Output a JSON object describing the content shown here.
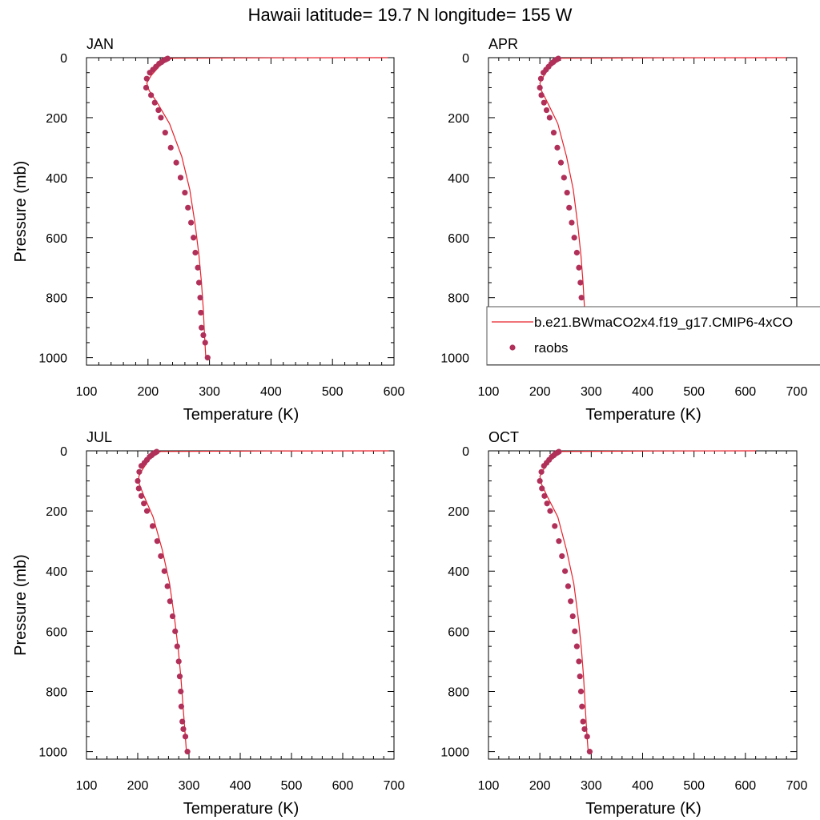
{
  "title": "Hawaii  latitude= 19.7 N longitude= 155 W",
  "legend": {
    "model_label": "b.e21.BWmaCO2x4.f19_g17.CMIP6-4xCO",
    "obs_label": "raobs"
  },
  "colors": {
    "model_line": "#e8202a",
    "obs_marker": "#b0305a",
    "axis": "#000000"
  },
  "chart_data": [
    {
      "type": "line",
      "panel_title": "JAN",
      "xlabel": "Temperature (K)",
      "ylabel": "Pressure (mb)",
      "xlim": [
        100,
        600
      ],
      "ylim": [
        0,
        1025
      ],
      "y_inverted": true,
      "xticks": [
        100,
        200,
        300,
        400,
        500,
        600
      ],
      "yticks": [
        0,
        200,
        400,
        600,
        800,
        1000
      ],
      "series": [
        {
          "name": "b.e21.BWmaCO2x4.f19_g17.CMIP6-4xCO",
          "kind": "line",
          "x": [
            590,
            400,
            240,
            230,
            218,
            205,
            198,
            202,
            215,
            235,
            255,
            268,
            277,
            283,
            287,
            290,
            292,
            294
          ],
          "y": [
            0,
            0.5,
            2,
            8,
            30,
            60,
            85,
            110,
            150,
            220,
            330,
            440,
            560,
            660,
            750,
            840,
            930,
            1000
          ]
        },
        {
          "name": "raobs",
          "kind": "scatter",
          "x": [
            232,
            230,
            228,
            225,
            222,
            218,
            213,
            208,
            203,
            198,
            197,
            205,
            211,
            217,
            221,
            228,
            237,
            246,
            253,
            260,
            265,
            270,
            274,
            277,
            281,
            283,
            285,
            286,
            287,
            290,
            293,
            297
          ],
          "y": [
            3,
            5,
            7,
            10,
            15,
            20,
            30,
            40,
            50,
            70,
            100,
            125,
            150,
            175,
            200,
            250,
            300,
            350,
            400,
            450,
            500,
            550,
            600,
            650,
            700,
            750,
            800,
            850,
            900,
            925,
            950,
            1000
          ]
        }
      ]
    },
    {
      "type": "line",
      "panel_title": "APR",
      "xlabel": "Temperature (K)",
      "ylabel": "",
      "xlim": [
        100,
        700
      ],
      "ylim": [
        0,
        1025
      ],
      "y_inverted": true,
      "xticks": [
        100,
        200,
        300,
        400,
        500,
        600,
        700
      ],
      "yticks": [
        0,
        200,
        400,
        600,
        800,
        1000
      ],
      "series": [
        {
          "name": "b.e21.BWmaCO2x4.f19_g17.CMIP6-4xCO",
          "kind": "line",
          "x": [
            680,
            450,
            240,
            232,
            220,
            208,
            200,
            203,
            215,
            235,
            252,
            265,
            274,
            280,
            284,
            287,
            290,
            292
          ],
          "y": [
            0,
            0.5,
            2,
            8,
            30,
            60,
            85,
            110,
            150,
            220,
            330,
            440,
            560,
            660,
            750,
            840,
            930,
            1000
          ]
        },
        {
          "name": "raobs",
          "kind": "scatter",
          "x": [
            236,
            234,
            232,
            229,
            226,
            222,
            217,
            212,
            207,
            202,
            200,
            203,
            208,
            213,
            219,
            227,
            234,
            241,
            247,
            253,
            257,
            262,
            267,
            272,
            276,
            279,
            281,
            283,
            285,
            287,
            291,
            295
          ],
          "y": [
            3,
            5,
            7,
            10,
            15,
            20,
            30,
            40,
            50,
            70,
            100,
            125,
            150,
            175,
            200,
            250,
            300,
            350,
            400,
            450,
            500,
            550,
            600,
            650,
            700,
            750,
            800,
            850,
            900,
            925,
            950,
            1000
          ]
        }
      ]
    },
    {
      "type": "line",
      "panel_title": "JUL",
      "xlabel": "Temperature (K)",
      "ylabel": "Pressure (mb)",
      "xlim": [
        100,
        700
      ],
      "ylim": [
        0,
        1025
      ],
      "y_inverted": true,
      "xticks": [
        100,
        200,
        300,
        400,
        500,
        600,
        700
      ],
      "yticks": [
        0,
        200,
        400,
        600,
        800,
        1000
      ],
      "series": [
        {
          "name": "b.e21.BWmaCO2x4.f19_g17.CMIP6-4xCO",
          "kind": "line",
          "x": [
            690,
            450,
            245,
            235,
            222,
            210,
            202,
            203,
            212,
            230,
            248,
            262,
            272,
            279,
            284,
            288,
            292,
            295
          ],
          "y": [
            0,
            0.5,
            2,
            8,
            30,
            60,
            85,
            110,
            150,
            220,
            330,
            440,
            560,
            660,
            750,
            840,
            930,
            1000
          ]
        },
        {
          "name": "raobs",
          "kind": "scatter",
          "x": [
            237,
            235,
            233,
            230,
            227,
            223,
            218,
            213,
            207,
            203,
            200,
            202,
            207,
            212,
            218,
            229,
            238,
            245,
            252,
            258,
            263,
            268,
            273,
            277,
            280,
            282,
            284,
            285,
            287,
            289,
            293,
            297
          ],
          "y": [
            3,
            5,
            7,
            10,
            15,
            20,
            30,
            40,
            50,
            70,
            100,
            125,
            150,
            175,
            200,
            250,
            300,
            350,
            400,
            450,
            500,
            550,
            600,
            650,
            700,
            750,
            800,
            850,
            900,
            925,
            950,
            1000
          ]
        }
      ]
    },
    {
      "type": "line",
      "panel_title": "OCT",
      "xlabel": "Temperature (K)",
      "ylabel": "",
      "xlim": [
        100,
        700
      ],
      "ylim": [
        0,
        1025
      ],
      "y_inverted": true,
      "xticks": [
        100,
        200,
        300,
        400,
        500,
        600,
        700
      ],
      "yticks": [
        0,
        200,
        400,
        600,
        800,
        1000
      ],
      "series": [
        {
          "name": "b.e21.BWmaCO2x4.f19_g17.CMIP6-4xCO",
          "kind": "line",
          "x": [
            620,
            420,
            240,
            232,
            220,
            208,
            200,
            203,
            214,
            235,
            252,
            266,
            275,
            281,
            285,
            288,
            291,
            294
          ],
          "y": [
            0,
            0.5,
            2,
            8,
            30,
            60,
            85,
            110,
            150,
            220,
            330,
            440,
            560,
            660,
            750,
            840,
            930,
            1000
          ]
        },
        {
          "name": "raobs",
          "kind": "scatter",
          "x": [
            237,
            235,
            233,
            230,
            227,
            223,
            218,
            213,
            208,
            203,
            200,
            204,
            209,
            214,
            220,
            229,
            237,
            243,
            249,
            255,
            260,
            264,
            268,
            272,
            276,
            278,
            280,
            282,
            284,
            287,
            292,
            297
          ],
          "y": [
            3,
            5,
            7,
            10,
            15,
            20,
            30,
            40,
            50,
            70,
            100,
            125,
            150,
            175,
            200,
            250,
            300,
            350,
            400,
            450,
            500,
            550,
            600,
            650,
            700,
            750,
            800,
            850,
            900,
            925,
            950,
            1000
          ]
        }
      ]
    }
  ]
}
